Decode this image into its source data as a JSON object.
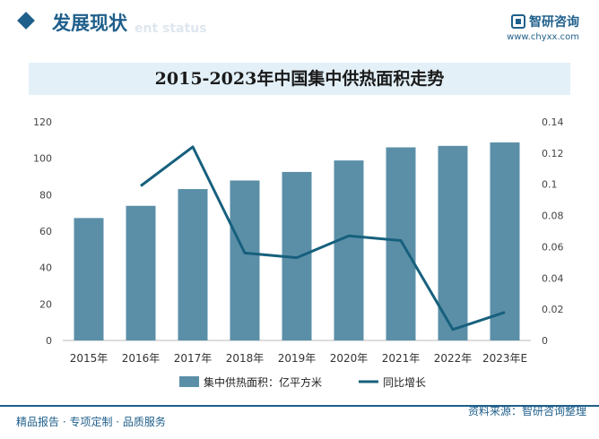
{
  "header": {
    "section_title": "发展现状",
    "section_subtitle": "ent status",
    "brand_name": "智研咨询",
    "brand_url": "www.chyxx.com"
  },
  "footer": {
    "left_text": "精品报告 · 专项定制 · 品质服务",
    "source_text": "资料来源：智研咨询整理"
  },
  "chart_data": {
    "type": "bar",
    "title": "2015-2023年中国集中供热面积走势",
    "categories": [
      "2015年",
      "2016年",
      "2017年",
      "2018年",
      "2019年",
      "2020年",
      "2021年",
      "2022年",
      "2023年E"
    ],
    "series": [
      {
        "name": "集中供热面积：亿平方米",
        "type": "bar",
        "axis": "left",
        "color": "#5b8fa8",
        "values": [
          67.2,
          73.9,
          83.1,
          87.8,
          92.5,
          98.8,
          106.0,
          106.8,
          108.7
        ]
      },
      {
        "name": "同比增长",
        "type": "line",
        "axis": "right",
        "color": "#17607d",
        "values": [
          null,
          0.099,
          0.124,
          0.056,
          0.053,
          0.067,
          0.064,
          0.007,
          0.018
        ]
      }
    ],
    "left_axis": {
      "ylim": [
        0,
        120
      ],
      "ticks": [
        "0",
        "20",
        "40",
        "60",
        "80",
        "100",
        "120"
      ]
    },
    "right_axis": {
      "ylim": [
        0,
        0.14
      ],
      "ticks": [
        "0",
        "0.02",
        "0.04",
        "0.06",
        "0.08",
        "0.1",
        "0.12",
        "0.14"
      ]
    },
    "legend_position": "bottom"
  }
}
